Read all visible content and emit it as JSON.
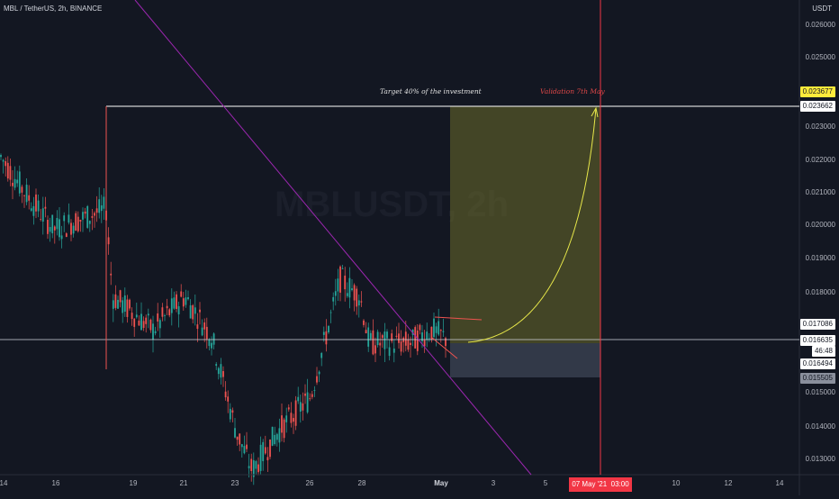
{
  "header": {
    "symbol": "MBL / TetherUS, 2h, BINANCE",
    "quote": "USDT"
  },
  "watermark": "MBLUSDT, 2h",
  "y_axis": {
    "ticks": [
      "0.026000",
      "0.025000",
      "0.023000",
      "0.022000",
      "0.021000",
      "0.020000",
      "0.019000",
      "0.018000",
      "0.015000",
      "0.014000",
      "0.013000"
    ]
  },
  "x_axis": {
    "ticks": [
      "14",
      "16",
      "19",
      "21",
      "23",
      "26",
      "28",
      "May",
      "3",
      "5",
      "10",
      "12",
      "14"
    ]
  },
  "price_labels": {
    "target_yellow": "0.023677",
    "target_white": "0.023662",
    "red_level": "0.017086",
    "current": "0.016635",
    "countdown": "46:48",
    "entry": "0.016494",
    "stop": "0.015505"
  },
  "annotations": {
    "target_text": "Target 40% of the investment",
    "validation_text": "Validation 7th May"
  },
  "time_marker": {
    "date": "07 May '21",
    "time": "03:00"
  },
  "colors": {
    "up": "#26a69a",
    "down": "#ef5350",
    "bg": "#131722",
    "axis_text": "#b2b5be",
    "target_zone": "#6b6b2a",
    "stop_zone": "#3b4252",
    "trendline": "#9c27b0",
    "curve": "#e8e84a",
    "red_marker": "#f23645",
    "yellow_label": "#ffeb3b"
  }
}
